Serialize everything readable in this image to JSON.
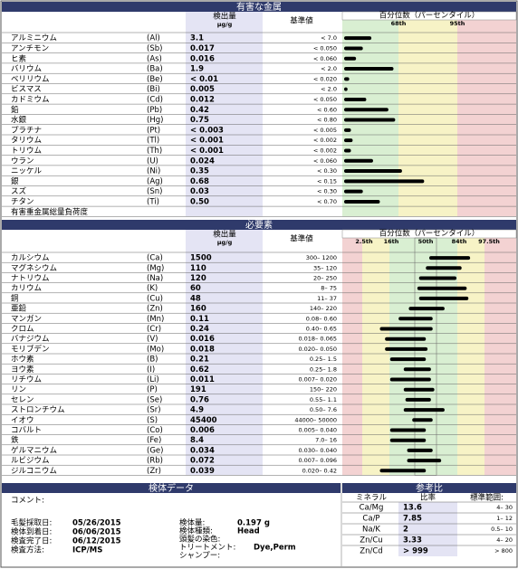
{
  "toxic": {
    "title": "有害な金属",
    "value_header": "検出量",
    "unit": "µg/g",
    "ref_header": "基準値",
    "chart_header": "百分位数（パーセンタイル）",
    "percentiles": [
      "68th",
      "95th"
    ],
    "rows": [
      {
        "name": "アルミニウム",
        "symbol": "(Al)",
        "value": "3.1",
        "ref": "< 7.0",
        "bar": 16
      },
      {
        "name": "アンチモン",
        "symbol": "(Sb)",
        "value": "0.017",
        "ref": "< 0.050",
        "bar": 11
      },
      {
        "name": "ヒ素",
        "symbol": "(As)",
        "value": "0.016",
        "ref": "< 0.060",
        "bar": 7
      },
      {
        "name": "バリウム",
        "symbol": "(Ba)",
        "value": "1.9",
        "ref": "< 2.0",
        "bar": 29
      },
      {
        "name": "ベリリウム",
        "symbol": "(Be)",
        "value": "< 0.01",
        "ref": "< 0.020",
        "bar": 3
      },
      {
        "name": "ビスマス",
        "symbol": "(Bi)",
        "value": "0.005",
        "ref": "< 2.0",
        "bar": 2
      },
      {
        "name": "カドミウム",
        "symbol": "(Cd)",
        "value": "0.012",
        "ref": "< 0.050",
        "bar": 13
      },
      {
        "name": "鉛",
        "symbol": "(Pb)",
        "value": "0.42",
        "ref": "< 0.60",
        "bar": 26
      },
      {
        "name": "水銀",
        "symbol": "(Hg)",
        "value": "0.75",
        "ref": "< 0.80",
        "bar": 30
      },
      {
        "name": "プラチナ",
        "symbol": "(Pt)",
        "value": "< 0.003",
        "ref": "< 0.005",
        "bar": 4
      },
      {
        "name": "タリウム",
        "symbol": "(Tl)",
        "value": "< 0.001",
        "ref": "< 0.002",
        "bar": 5
      },
      {
        "name": "トリウム",
        "symbol": "(Th)",
        "value": "< 0.001",
        "ref": "< 0.002",
        "bar": 4
      },
      {
        "name": "ウラン",
        "symbol": "(U)",
        "value": "0.024",
        "ref": "< 0.060",
        "bar": 17
      },
      {
        "name": "ニッケル",
        "symbol": "(Ni)",
        "value": "0.35",
        "ref": "< 0.30",
        "bar": 34
      },
      {
        "name": "銀",
        "symbol": "(Ag)",
        "value": "0.68",
        "ref": "< 0.15",
        "bar": 47
      },
      {
        "name": "スズ",
        "symbol": "(Sn)",
        "value": "0.03",
        "ref": "< 0.30",
        "bar": 11
      },
      {
        "name": "チタン",
        "symbol": "(Ti)",
        "value": "0.50",
        "ref": "< 0.70",
        "bar": 21
      }
    ],
    "total": "有害重金属総量負荷度"
  },
  "essential": {
    "title": "必要素",
    "value_header": "検出量",
    "unit": "µg/g",
    "ref_header": "基準値",
    "chart_header": "百分位数（パーセンタイル）",
    "percentiles": [
      "2.5th",
      "16th",
      "50th",
      "84th",
      "97.5th"
    ],
    "rows": [
      {
        "name": "カルシウム",
        "symbol": "(Ca)",
        "value": "1500",
        "ref": "300– 1200",
        "bar": [
          50,
          74
        ]
      },
      {
        "name": "マグネシウム",
        "symbol": "(Mg)",
        "value": "110",
        "ref": "35– 120",
        "bar": [
          48,
          69
        ]
      },
      {
        "name": "ナトリウム",
        "symbol": "(Na)",
        "value": "120",
        "ref": "20– 250",
        "bar": [
          44,
          66
        ]
      },
      {
        "name": "カリウム",
        "symbol": "(K)",
        "value": "60",
        "ref": "8– 75",
        "bar": [
          43,
          72
        ]
      },
      {
        "name": "銅",
        "symbol": "(Cu)",
        "value": "48",
        "ref": "11– 37",
        "bar": [
          44,
          73
        ]
      },
      {
        "name": "亜鉛",
        "symbol": "(Zn)",
        "value": "160",
        "ref": "140– 220",
        "bar": [
          38,
          59
        ]
      },
      {
        "name": "マンガン",
        "symbol": "(Mn)",
        "value": "0.11",
        "ref": "0.08– 0.60",
        "bar": [
          32,
          52
        ]
      },
      {
        "name": "クロム",
        "symbol": "(Cr)",
        "value": "0.24",
        "ref": "0.40– 0.65",
        "bar": [
          21,
          52
        ]
      },
      {
        "name": "バナジウム",
        "symbol": "(V)",
        "value": "0.016",
        "ref": "0.018– 0.065",
        "bar": [
          24,
          48
        ]
      },
      {
        "name": "モリブデン",
        "symbol": "(Mo)",
        "value": "0.018",
        "ref": "0.020– 0.050",
        "bar": [
          24,
          49
        ]
      },
      {
        "name": "ホウ素",
        "symbol": "(B)",
        "value": "0.21",
        "ref": "0.25– 1.5",
        "bar": [
          27,
          48
        ]
      },
      {
        "name": "ヨウ素",
        "symbol": "(I)",
        "value": "0.62",
        "ref": "0.25– 1.8",
        "bar": [
          35,
          51
        ]
      },
      {
        "name": "リチウム",
        "symbol": "(Li)",
        "value": "0.011",
        "ref": "0.007– 0.020",
        "bar": [
          27,
          51
        ]
      },
      {
        "name": "リン",
        "symbol": "(P)",
        "value": "191",
        "ref": "150– 220",
        "bar": [
          35,
          53
        ]
      },
      {
        "name": "セレン",
        "symbol": "(Se)",
        "value": "0.76",
        "ref": "0.55– 1.1",
        "bar": [
          36,
          51
        ]
      },
      {
        "name": "ストロンチウム",
        "symbol": "(Sr)",
        "value": "4.9",
        "ref": "0.50– 7.6",
        "bar": [
          35,
          59
        ]
      },
      {
        "name": "イオウ",
        "symbol": "(S)",
        "value": "45400",
        "ref": "44000– 50000",
        "bar": [
          40,
          52
        ]
      },
      {
        "name": "コバルト",
        "symbol": "(Co)",
        "value": "0.006",
        "ref": "0.005– 0.040",
        "bar": [
          27,
          48
        ]
      },
      {
        "name": "鉄",
        "symbol": "(Fe)",
        "value": "8.4",
        "ref": "7.0– 16",
        "bar": [
          27,
          48
        ]
      },
      {
        "name": "ゲルマニウム",
        "symbol": "(Ge)",
        "value": "0.034",
        "ref": "0.030– 0.040",
        "bar": [
          37,
          52
        ]
      },
      {
        "name": "ルビジウム",
        "symbol": "(Rb)",
        "value": "0.072",
        "ref": "0.007– 0.096",
        "bar": [
          37,
          57
        ]
      },
      {
        "name": "ジルコニウム",
        "symbol": "(Zr)",
        "value": "0.039",
        "ref": "0.020– 0.42",
        "bar": [
          21,
          48
        ]
      }
    ]
  },
  "sample": {
    "title": "検体データ",
    "comment": "コメント:",
    "left": [
      [
        "毛髪採取日:",
        "05/26/2015"
      ],
      [
        "検体到着日:",
        "06/06/2015"
      ],
      [
        "検査完了日:",
        "06/12/2015"
      ],
      [
        "検査方法:",
        "ICP/MS"
      ]
    ],
    "right": [
      [
        "検体量:",
        "0.197 g"
      ],
      [
        "検体種類:",
        "Head"
      ],
      [
        "頭髪の染色:",
        ""
      ],
      [
        "トリートメント:",
        "Dye,Perm"
      ],
      [
        "シャンプー:",
        ""
      ]
    ]
  },
  "ratios": {
    "title": "参考比",
    "headers": [
      "ミネラル",
      "比率",
      "標準範囲:"
    ],
    "rows": [
      [
        "Ca/Mg",
        "13.6",
        "4– 30"
      ],
      [
        "Ca/P",
        "7.85",
        "1– 12"
      ],
      [
        "Na/K",
        "2",
        "0.5– 10"
      ],
      [
        "Zn/Cu",
        "3.33",
        "4– 20"
      ],
      [
        "Zn/Cd",
        "> 999",
        "> 800"
      ]
    ]
  }
}
